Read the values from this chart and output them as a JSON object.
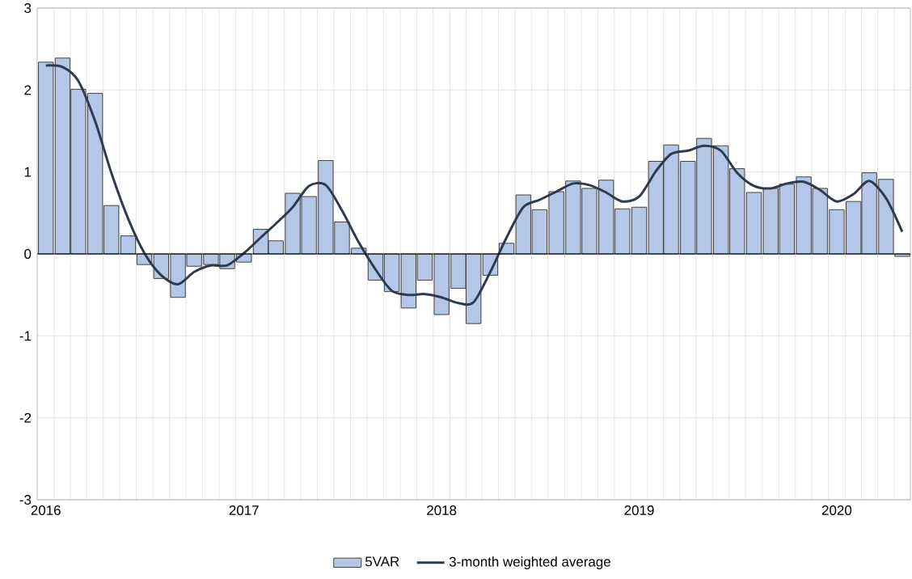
{
  "chart_data": {
    "type": "bar",
    "x": [
      "2016-01",
      "2016-02",
      "2016-03",
      "2016-04",
      "2016-05",
      "2016-06",
      "2016-07",
      "2016-08",
      "2016-09",
      "2016-10",
      "2016-11",
      "2016-12",
      "2017-01",
      "2017-02",
      "2017-03",
      "2017-04",
      "2017-05",
      "2017-06",
      "2017-07",
      "2017-08",
      "2017-09",
      "2017-10",
      "2017-11",
      "2017-12",
      "2018-01",
      "2018-02",
      "2018-03",
      "2018-04",
      "2018-05",
      "2018-06",
      "2018-07",
      "2018-08",
      "2018-09",
      "2018-10",
      "2018-11",
      "2018-12",
      "2019-01",
      "2019-02",
      "2019-03",
      "2019-04",
      "2019-05",
      "2019-06",
      "2019-07",
      "2019-08",
      "2019-09",
      "2019-10",
      "2019-11",
      "2019-12",
      "2020-01",
      "2020-02",
      "2020-03",
      "2020-04",
      "2020-05"
    ],
    "series": [
      {
        "name": "5VAR",
        "color": "#b4c7e7",
        "values": [
          2.34,
          2.39,
          2.01,
          1.96,
          0.59,
          0.22,
          -0.13,
          -0.3,
          -0.53,
          -0.15,
          -0.13,
          -0.18,
          -0.1,
          0.3,
          0.16,
          0.74,
          0.7,
          1.14,
          0.39,
          0.07,
          -0.32,
          -0.46,
          -0.66,
          -0.32,
          -0.74,
          -0.42,
          -0.85,
          -0.26,
          0.13,
          0.72,
          0.54,
          0.76,
          0.89,
          0.8,
          0.9,
          0.55,
          0.57,
          1.13,
          1.33,
          1.13,
          1.41,
          1.32,
          1.04,
          0.75,
          0.8,
          0.85,
          0.94,
          0.8,
          0.54,
          0.64,
          0.99,
          0.91,
          -0.03
        ]
      },
      {
        "name": "3-month weighted average",
        "type": "line",
        "color": "#2e3b4e",
        "values": [
          2.3,
          2.28,
          2.11,
          1.62,
          0.99,
          0.43,
          0.01,
          -0.26,
          -0.37,
          -0.22,
          -0.14,
          -0.14,
          0.01,
          0.2,
          0.37,
          0.57,
          0.83,
          0.84,
          0.53,
          0.14,
          -0.19,
          -0.45,
          -0.5,
          -0.49,
          -0.53,
          -0.6,
          -0.59,
          -0.22,
          0.2,
          0.57,
          0.66,
          0.76,
          0.86,
          0.84,
          0.75,
          0.64,
          0.7,
          1.01,
          1.22,
          1.26,
          1.32,
          1.26,
          0.99,
          0.83,
          0.8,
          0.86,
          0.88,
          0.78,
          0.64,
          0.73,
          0.89,
          0.68,
          0.27
        ]
      }
    ],
    "xlim": [
      "2015-12-16",
      "2020-05-16"
    ],
    "xticks": [
      "2016",
      "2017",
      "2018",
      "2019",
      "2020"
    ],
    "ylim": [
      -3,
      3
    ],
    "yticks": [
      -3,
      -2,
      -1,
      0,
      1,
      2,
      3
    ],
    "grid": true,
    "legend": "bottom",
    "marker": "none",
    "line_style": "solid"
  }
}
